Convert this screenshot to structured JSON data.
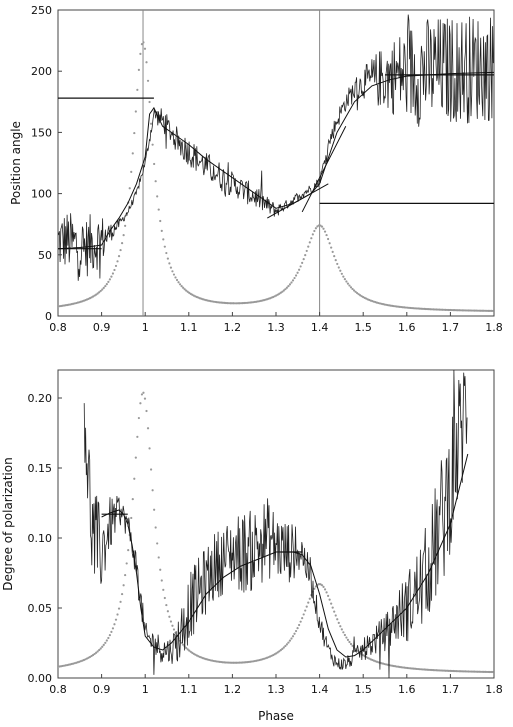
{
  "chart_data": [
    {
      "type": "line",
      "ylabel": "Position angle",
      "xlabel": "",
      "xlim": [
        0.8,
        1.8
      ],
      "ylim": [
        0,
        250
      ],
      "x_ticks": [
        0.8,
        0.9,
        1.0,
        1.1,
        1.2,
        1.3,
        1.4,
        1.5,
        1.6,
        1.7,
        1.8
      ],
      "x_tick_labels": [
        "0.8",
        "0.9",
        "1",
        "1.1",
        "1.2",
        "1.3",
        "1.4",
        "1.5",
        "1.6",
        "1.7",
        "1.8"
      ],
      "y_ticks": [
        0,
        50,
        100,
        150,
        200,
        250
      ],
      "y_tick_labels": [
        "0",
        "50",
        "100",
        "150",
        "200",
        "250"
      ],
      "grid": false,
      "vertical_lines": [
        0.995,
        1.4
      ],
      "noisy_data": {
        "x": [
          0.8,
          0.82,
          0.84,
          0.86,
          0.88,
          0.9,
          0.92,
          0.94,
          0.96,
          0.98,
          1.0,
          1.02,
          1.04,
          1.06,
          1.08,
          1.1,
          1.12,
          1.14,
          1.16,
          1.18,
          1.2,
          1.22,
          1.24,
          1.26,
          1.28,
          1.3,
          1.32,
          1.34,
          1.36,
          1.38,
          1.4,
          1.42,
          1.44,
          1.46,
          1.48,
          1.5,
          1.52,
          1.54,
          1.56,
          1.58,
          1.6,
          1.62,
          1.64,
          1.66,
          1.68,
          1.7,
          1.72,
          1.74,
          1.76,
          1.78,
          1.8
        ],
        "y": [
          60,
          62,
          58,
          55,
          60,
          62,
          68,
          75,
          85,
          100,
          125,
          165,
          160,
          150,
          140,
          135,
          128,
          122,
          118,
          112,
          108,
          104,
          100,
          96,
          90,
          86,
          90,
          95,
          100,
          104,
          110,
          140,
          160,
          175,
          185,
          190,
          192,
          194,
          196,
          197,
          198,
          199,
          200,
          200,
          201,
          201,
          202,
          202,
          203,
          203,
          204
        ],
        "noise": [
          25,
          25,
          25,
          25,
          25,
          22,
          8,
          4,
          3,
          3,
          3,
          6,
          10,
          10,
          12,
          12,
          12,
          12,
          12,
          12,
          10,
          10,
          10,
          10,
          8,
          6,
          4,
          4,
          4,
          4,
          4,
          6,
          8,
          8,
          10,
          12,
          20,
          25,
          30,
          35,
          40,
          45,
          45,
          45,
          45,
          45,
          45,
          45,
          45,
          45,
          45
        ]
      },
      "model_curve": {
        "x": [
          0.8,
          0.85,
          0.88,
          0.9,
          0.92,
          0.94,
          0.96,
          0.98,
          1.0,
          1.01,
          1.02,
          1.04,
          1.06,
          1.08,
          1.1,
          1.14,
          1.18,
          1.22,
          1.26,
          1.3,
          1.34,
          1.38,
          1.4,
          1.44,
          1.48,
          1.52,
          1.56,
          1.6,
          1.7,
          1.8
        ],
        "y": [
          55,
          56,
          57,
          58,
          70,
          80,
          92,
          108,
          130,
          165,
          170,
          155,
          150,
          145,
          140,
          128,
          118,
          108,
          98,
          88,
          92,
          100,
          108,
          150,
          175,
          188,
          193,
          196,
          198,
          199
        ]
      },
      "step_segments": [
        {
          "x": [
            0.8,
            1.02
          ],
          "y": 178
        },
        {
          "x": [
            0.8,
            0.9
          ],
          "y": 55
        },
        {
          "x": [
            1.4,
            1.8
          ],
          "y": 92
        },
        {
          "x": [
            1.55,
            1.8
          ],
          "y": 197
        }
      ],
      "tangent_lines": [
        {
          "x": [
            1.28,
            1.42
          ],
          "y": [
            80,
            108
          ]
        },
        {
          "x": [
            1.36,
            1.46
          ],
          "y": [
            85,
            155
          ]
        }
      ],
      "dotted_curve": {
        "peaks": [
          {
            "center": 0.995,
            "height": 220,
            "width": 0.028
          },
          {
            "center": 1.4,
            "height": 70,
            "width": 0.045
          }
        ],
        "baseline": 3
      }
    },
    {
      "type": "line",
      "ylabel": "Degree of polarization",
      "xlabel": "Phase",
      "xlim": [
        0.8,
        1.8
      ],
      "ylim": [
        0,
        0.22
      ],
      "x_ticks": [
        0.8,
        0.9,
        1.0,
        1.1,
        1.2,
        1.3,
        1.4,
        1.5,
        1.6,
        1.7,
        1.8
      ],
      "x_tick_labels": [
        "0.8",
        "0.9",
        "1",
        "1.1",
        "1.2",
        "1.3",
        "1.4",
        "1.5",
        "1.6",
        "1.7",
        "1.8"
      ],
      "y_ticks": [
        0,
        0.05,
        0.1,
        0.15,
        0.2
      ],
      "y_tick_labels": [
        "0.00",
        "0.05",
        "0.10",
        "0.15",
        "0.20"
      ],
      "grid": false,
      "noisy_data": {
        "x": [
          0.86,
          0.87,
          0.88,
          0.9,
          0.92,
          0.94,
          0.96,
          0.98,
          1.0,
          1.02,
          1.04,
          1.06,
          1.08,
          1.1,
          1.12,
          1.14,
          1.16,
          1.18,
          1.2,
          1.22,
          1.24,
          1.26,
          1.28,
          1.3,
          1.32,
          1.34,
          1.36,
          1.38,
          1.4,
          1.42,
          1.44,
          1.46,
          1.48,
          1.5,
          1.52,
          1.54,
          1.56,
          1.58,
          1.6,
          1.62,
          1.64,
          1.66,
          1.68,
          1.7,
          1.72,
          1.74
        ],
        "y": [
          0.2,
          0.14,
          0.1,
          0.09,
          0.11,
          0.12,
          0.11,
          0.08,
          0.03,
          0.025,
          0.02,
          0.02,
          0.03,
          0.05,
          0.06,
          0.07,
          0.08,
          0.085,
          0.09,
          0.09,
          0.09,
          0.095,
          0.1,
          0.095,
          0.09,
          0.09,
          0.09,
          0.07,
          0.04,
          0.02,
          0.01,
          0.01,
          0.015,
          0.02,
          0.025,
          0.03,
          0.035,
          0.045,
          0.05,
          0.06,
          0.07,
          0.09,
          0.11,
          0.14,
          0.17,
          0.2
        ],
        "noise": [
          0.03,
          0.04,
          0.04,
          0.03,
          0.02,
          0.01,
          0.01,
          0.01,
          0.01,
          0.01,
          0.01,
          0.01,
          0.02,
          0.025,
          0.025,
          0.025,
          0.025,
          0.025,
          0.025,
          0.03,
          0.03,
          0.03,
          0.03,
          0.025,
          0.025,
          0.02,
          0.015,
          0.01,
          0.008,
          0.006,
          0.005,
          0.005,
          0.006,
          0.008,
          0.01,
          0.012,
          0.015,
          0.02,
          0.025,
          0.03,
          0.035,
          0.04,
          0.05,
          0.05,
          0.05,
          0.05
        ]
      },
      "model_curve": {
        "x": [
          0.9,
          0.92,
          0.94,
          0.95,
          0.96,
          0.97,
          0.98,
          0.99,
          1.0,
          1.02,
          1.04,
          1.06,
          1.1,
          1.14,
          1.18,
          1.22,
          1.26,
          1.3,
          1.34,
          1.36,
          1.38,
          1.4,
          1.42,
          1.44,
          1.46,
          1.48,
          1.5,
          1.55,
          1.6,
          1.65,
          1.7,
          1.74
        ],
        "y": [
          0.115,
          0.118,
          0.12,
          0.117,
          0.11,
          0.095,
          0.075,
          0.05,
          0.03,
          0.022,
          0.02,
          0.025,
          0.04,
          0.06,
          0.072,
          0.08,
          0.085,
          0.09,
          0.09,
          0.088,
          0.08,
          0.06,
          0.035,
          0.02,
          0.015,
          0.016,
          0.02,
          0.035,
          0.05,
          0.075,
          0.11,
          0.16
        ]
      },
      "step_segments": [
        {
          "x": [
            0.9,
            0.96
          ],
          "y": 0.117
        },
        {
          "x": [
            1.31,
            1.36
          ],
          "y": 0.09
        }
      ],
      "dotted_curve": {
        "peaks": [
          {
            "center": 0.995,
            "height": 0.2,
            "width": 0.03
          },
          {
            "center": 1.4,
            "height": 0.063,
            "width": 0.05
          }
        ],
        "baseline": 0.003
      }
    }
  ]
}
